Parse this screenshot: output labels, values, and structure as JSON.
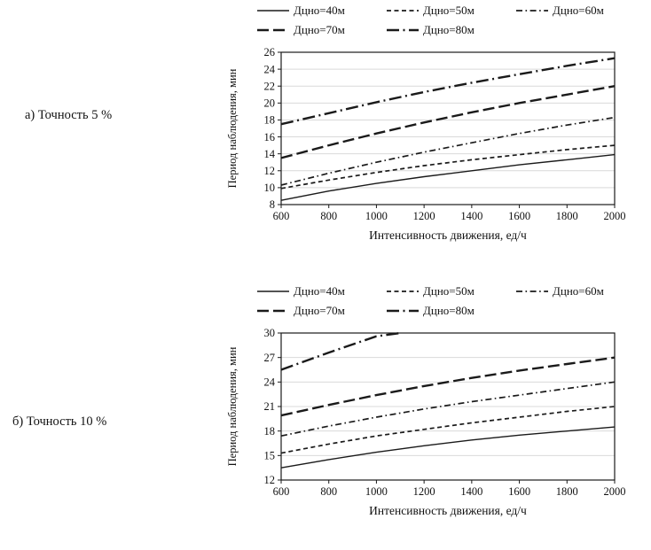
{
  "colors": {
    "line": "#1a1a1a",
    "grid": "#d9d9d9",
    "text": "#111111",
    "background": "#ffffff"
  },
  "chart_data": [
    {
      "type": "line",
      "title": "а) Точность 5 %",
      "xlabel": "Интенсивность движения, ед/ч",
      "ylabel": "Период наблюдения, мин",
      "x": [
        600,
        800,
        1000,
        1200,
        1400,
        1600,
        1800,
        2000
      ],
      "xlim": [
        600,
        2000
      ],
      "xtick_step": 200,
      "ylim": [
        8,
        26
      ],
      "ytick_step": 2,
      "grid": "horizontal",
      "legend_position": "top",
      "series": [
        {
          "name": "Дцно=40м",
          "line_style": "solid",
          "values": [
            8.5,
            9.6,
            10.5,
            11.3,
            12.0,
            12.7,
            13.3,
            13.9
          ]
        },
        {
          "name": "Дцно=50м",
          "line_style": "dash",
          "values": [
            9.9,
            10.9,
            11.8,
            12.6,
            13.3,
            13.9,
            14.5,
            15.0
          ]
        },
        {
          "name": "Дцно=60м",
          "line_style": "dash-dot",
          "values": [
            10.3,
            11.7,
            13.0,
            14.2,
            15.3,
            16.4,
            17.4,
            18.3
          ]
        },
        {
          "name": "Дцно=70м",
          "line_style": "long-dash",
          "values": [
            13.5,
            15.0,
            16.4,
            17.7,
            18.9,
            20.0,
            21.0,
            22.0
          ]
        },
        {
          "name": "Дцно=80м",
          "line_style": "long-dash-dot",
          "values": [
            17.5,
            18.8,
            20.1,
            21.3,
            22.4,
            23.4,
            24.4,
            25.3
          ]
        }
      ]
    },
    {
      "type": "line",
      "title": "б) Точность 10 %",
      "xlabel": "Интенсивность движения, ед/ч",
      "ylabel": "Период наблюдения, мин",
      "x": [
        600,
        800,
        1000,
        1200,
        1400,
        1600,
        1800,
        2000
      ],
      "xlim": [
        600,
        2000
      ],
      "xtick_step": 200,
      "ylim": [
        12,
        30
      ],
      "ytick_step": 3,
      "grid": "horizontal",
      "legend_position": "top",
      "series": [
        {
          "name": "Дцно=40м",
          "line_style": "solid",
          "values": [
            13.5,
            14.5,
            15.4,
            16.2,
            16.9,
            17.5,
            18.0,
            18.5
          ]
        },
        {
          "name": "Дцно=50м",
          "line_style": "dash",
          "values": [
            15.3,
            16.4,
            17.4,
            18.2,
            19.0,
            19.7,
            20.4,
            21.0
          ]
        },
        {
          "name": "Дцно=60м",
          "line_style": "dash-dot",
          "values": [
            17.4,
            18.6,
            19.7,
            20.7,
            21.6,
            22.4,
            23.2,
            24.0
          ]
        },
        {
          "name": "Дцно=70м",
          "line_style": "long-dash",
          "values": [
            19.9,
            21.2,
            22.4,
            23.5,
            24.5,
            25.4,
            26.2,
            27.0
          ]
        },
        {
          "name": "Дцно=80м",
          "line_style": "long-dash-dot",
          "x_override": [
            600,
            800,
            1000,
            1100
          ],
          "values": [
            25.5,
            27.6,
            29.6,
            30.0
          ]
        }
      ]
    }
  ]
}
